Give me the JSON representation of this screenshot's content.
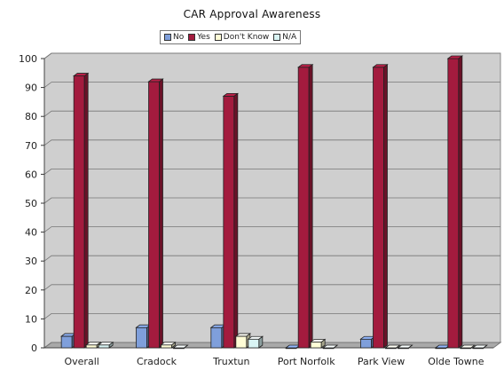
{
  "chart_data": {
    "type": "bar",
    "title": "CAR Approval Awareness",
    "categories": [
      "Overall",
      "Cradock",
      "Truxtun",
      "Port Norfolk",
      "Park View",
      "Olde Towne"
    ],
    "series": [
      {
        "name": "No",
        "values": [
          4,
          7,
          7,
          0,
          3,
          0
        ],
        "color": "#7f9fdb"
      },
      {
        "name": "Yes",
        "values": [
          94,
          92,
          87,
          97,
          97,
          100
        ],
        "color": "#a31b3e"
      },
      {
        "name": "Don't Know",
        "values": [
          1,
          1,
          4,
          2,
          0,
          0
        ],
        "color": "#fffdd6"
      },
      {
        "name": "N/A",
        "values": [
          1,
          0,
          3,
          0,
          0,
          0
        ],
        "color": "#d9f4f4"
      }
    ],
    "yticks": [
      "0",
      "10",
      "20",
      "30",
      "40",
      "50",
      "60",
      "70",
      "80",
      "90",
      "100"
    ],
    "ylim": [
      0,
      100
    ],
    "grid": true,
    "legend_position": "top"
  }
}
